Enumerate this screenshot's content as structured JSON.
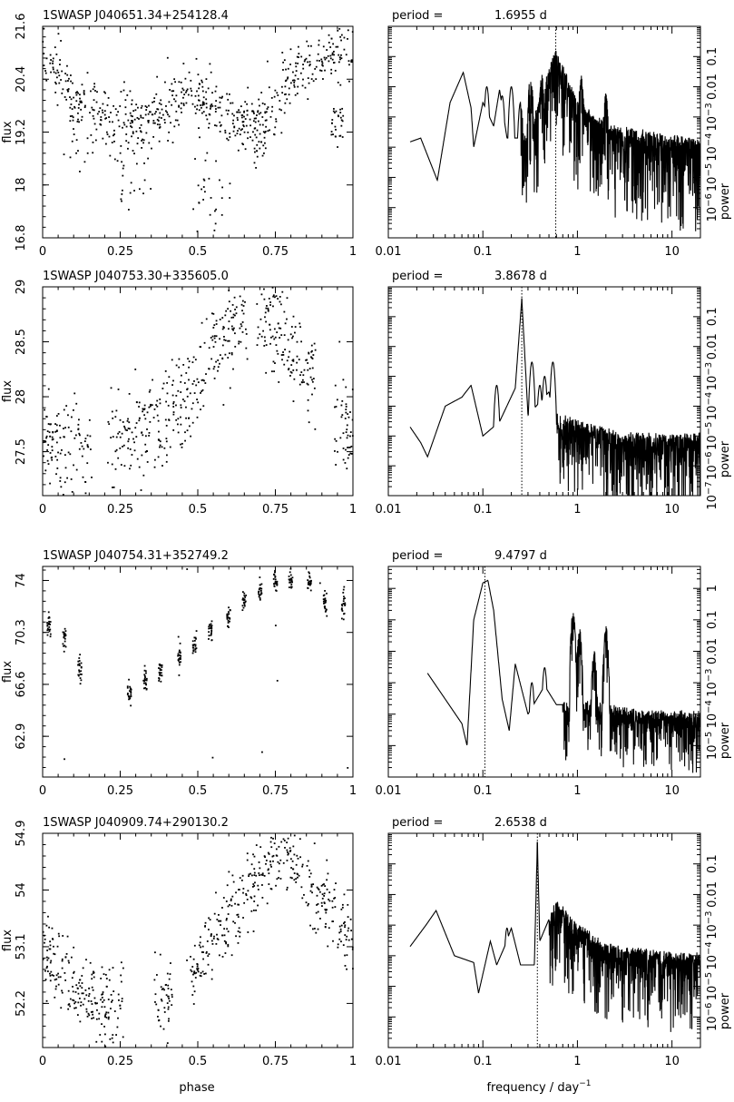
{
  "figure": {
    "xlabel_left": "phase",
    "xlabel_right_main": "frequency / day",
    "xlabel_right_sup": "−1"
  },
  "chart_data": [
    {
      "type": "scatter",
      "panel": 1,
      "title": "1SWASP J040651.34+254128.4",
      "xlabel": "phase",
      "ylabel": "flux",
      "xlim": [
        0,
        1
      ],
      "ylim": [
        16.8,
        21.6
      ],
      "xticks": [
        "0",
        "0.25",
        "0.5",
        "0.75",
        "1"
      ],
      "yticks": [
        "16.8",
        "18",
        "19.2",
        "20.4",
        "21.6"
      ],
      "ytick_values": [
        16.8,
        18,
        19.2,
        20.4,
        21.6
      ],
      "curve": [
        [
          0,
          20.9
        ],
        [
          0.05,
          20.5
        ],
        [
          0.1,
          19.9
        ],
        [
          0.2,
          19.55
        ],
        [
          0.3,
          19.35
        ],
        [
          0.4,
          19.7
        ],
        [
          0.48,
          20.1
        ],
        [
          0.55,
          19.7
        ],
        [
          0.62,
          19.4
        ],
        [
          0.68,
          19.35
        ],
        [
          0.75,
          20.0
        ],
        [
          0.85,
          20.6
        ],
        [
          0.95,
          21.0
        ],
        [
          1,
          21.0
        ]
      ],
      "scatter_sd": 0.35,
      "dips": [
        [
          0.06,
          0.17,
          20.3,
          18.3
        ],
        [
          0.25,
          0.35,
          19.2,
          17.6
        ],
        [
          0.48,
          0.61,
          18.7,
          16.9
        ],
        [
          0.67,
          0.72,
          19.8,
          18.6
        ],
        [
          0.93,
          0.97,
          19.8,
          18.9
        ]
      ]
    },
    {
      "type": "line",
      "panel": 1,
      "period_label": "period =",
      "period_value": "1.6955 d",
      "xscale": "log",
      "xlim": [
        0.01,
        20
      ],
      "yscale": "log",
      "ylim": [
        1e-07,
        1
      ],
      "xlabel": "frequency / day^-1",
      "ylabel": "power",
      "xticks": [
        "0.01",
        "0.1",
        "1",
        "10"
      ],
      "yticks": [
        "10^-6",
        "10^-5",
        "10^-4",
        "10^-3",
        "0.01",
        "0.1"
      ],
      "ytick_values": [
        1e-06,
        1e-05,
        0.0001,
        0.001,
        0.01,
        0.1
      ],
      "marked_frequency": 0.59,
      "envelope": [
        [
          0.017,
          0.00015
        ],
        [
          0.022,
          0.0002
        ],
        [
          0.033,
          8e-06
        ],
        [
          0.045,
          0.003
        ],
        [
          0.062,
          0.03
        ],
        [
          0.075,
          0.002
        ],
        [
          0.08,
          0.0001
        ],
        [
          0.1,
          0.003
        ],
        [
          0.13,
          0.0005
        ],
        [
          0.15,
          0.008
        ],
        [
          0.18,
          0.0002
        ],
        [
          0.3,
          0.0002
        ],
        [
          0.59,
          0.15
        ],
        [
          1.0,
          0.003
        ],
        [
          2,
          0.0005
        ],
        [
          5,
          0.0003
        ],
        [
          10,
          0.0002
        ],
        [
          20,
          0.00015
        ]
      ],
      "noise_start": 0.25,
      "noise_depth_dex": 3.0,
      "spikes": [
        [
          0.11,
          0.01
        ],
        [
          0.16,
          0.005
        ],
        [
          0.2,
          0.01
        ],
        [
          0.25,
          0.003
        ],
        [
          0.32,
          0.02
        ],
        [
          0.42,
          0.02
        ],
        [
          0.5,
          0.03
        ],
        [
          0.59,
          0.15
        ],
        [
          1.1,
          0.02
        ],
        [
          2.0,
          0.006
        ]
      ]
    },
    {
      "type": "scatter",
      "panel": 2,
      "title": "1SWASP J040753.30+335605.0",
      "xlabel": "phase",
      "ylabel": "flux",
      "xlim": [
        0,
        1
      ],
      "ylim": [
        27.1,
        29
      ],
      "xticks": [
        "0",
        "0.25",
        "0.5",
        "0.75",
        "1"
      ],
      "yticks": [
        "27.5",
        "28",
        "28.5",
        "29"
      ],
      "ytick_values": [
        27.5,
        28,
        28.5,
        29
      ],
      "curve": [
        [
          0,
          27.65
        ],
        [
          0.1,
          27.5
        ],
        [
          0.2,
          27.55
        ],
        [
          0.3,
          27.7
        ],
        [
          0.4,
          27.8
        ],
        [
          0.5,
          28.1
        ],
        [
          0.6,
          28.6
        ],
        [
          0.65,
          28.7
        ],
        [
          0.72,
          28.8
        ],
        [
          0.8,
          28.4
        ],
        [
          0.9,
          28.0
        ],
        [
          1,
          27.6
        ]
      ],
      "scatter_sd": 0.22,
      "gaps": [
        [
          0.16,
          0.21
        ],
        [
          0.66,
          0.69
        ],
        [
          0.88,
          0.94
        ]
      ],
      "dips": []
    },
    {
      "type": "line",
      "panel": 2,
      "period_label": "period =",
      "period_value": "3.8678 d",
      "xscale": "log",
      "xlim": [
        0.01,
        20
      ],
      "yscale": "log",
      "ylim": [
        1e-07,
        1
      ],
      "xlabel": "frequency / day^-1",
      "ylabel": "power",
      "xticks": [
        "0.01",
        "0.1",
        "1",
        "10"
      ],
      "yticks": [
        "10^-7",
        "10^-6",
        "10^-5",
        "10^-4",
        "10^-3",
        "0.01",
        "0.1"
      ],
      "ytick_values": [
        1e-07,
        1e-06,
        1e-05,
        0.0001,
        0.001,
        0.01,
        0.1
      ],
      "marked_frequency": 0.258,
      "envelope": [
        [
          0.017,
          2e-05
        ],
        [
          0.022,
          6e-06
        ],
        [
          0.026,
          2e-06
        ],
        [
          0.04,
          0.0001
        ],
        [
          0.06,
          0.0002
        ],
        [
          0.075,
          0.0005
        ],
        [
          0.1,
          1e-05
        ],
        [
          0.15,
          3e-05
        ],
        [
          0.22,
          0.0004
        ],
        [
          0.258,
          0.4
        ],
        [
          0.3,
          5e-05
        ],
        [
          0.5,
          0.0003
        ],
        [
          0.55,
          5e-05
        ],
        [
          1,
          3e-05
        ],
        [
          3,
          1e-05
        ],
        [
          10,
          1e-05
        ],
        [
          20,
          1e-05
        ]
      ],
      "noise_start": 0.6,
      "noise_depth_dex": 2.5,
      "spikes": [
        [
          0.14,
          0.0005
        ],
        [
          0.2,
          0.0001
        ],
        [
          0.33,
          0.003
        ],
        [
          0.4,
          0.0005
        ],
        [
          0.45,
          0.001
        ],
        [
          0.55,
          0.003
        ]
      ]
    },
    {
      "type": "scatter",
      "panel": 3,
      "title": "1SWASP J040754.31+352749.2",
      "xlabel": "phase",
      "ylabel": "flux",
      "xlim": [
        0,
        1
      ],
      "ylim": [
        60,
        75
      ],
      "xticks": [
        "0",
        "0.25",
        "0.5",
        "0.75",
        "1"
      ],
      "yticks": [
        "62.9",
        "66.6",
        "70.3",
        "74"
      ],
      "ytick_values": [
        62.9,
        66.6,
        70.3,
        74
      ],
      "clumps": [
        [
          0.02,
          70.8
        ],
        [
          0.07,
          70.0
        ],
        [
          0.12,
          67.8
        ],
        [
          0.28,
          66.0
        ],
        [
          0.33,
          66.8
        ],
        [
          0.38,
          67.6
        ],
        [
          0.44,
          68.5
        ],
        [
          0.49,
          69.5
        ],
        [
          0.54,
          70.4
        ],
        [
          0.6,
          71.4
        ],
        [
          0.65,
          72.5
        ],
        [
          0.7,
          73.2
        ],
        [
          0.75,
          73.8
        ],
        [
          0.8,
          74.0
        ],
        [
          0.86,
          74.0
        ],
        [
          0.91,
          72.5
        ],
        [
          0.97,
          72.2
        ]
      ]
    },
    {
      "type": "line",
      "panel": 3,
      "period_label": "period =",
      "period_value": "9.4797 d",
      "xscale": "log",
      "xlim": [
        0.01,
        20
      ],
      "yscale": "log",
      "ylim": [
        1e-06,
        5
      ],
      "xlabel": "frequency / day^-1",
      "ylabel": "power",
      "xticks": [
        "0.01",
        "0.1",
        "1",
        "10"
      ],
      "yticks": [
        "10^-5",
        "10^-4",
        "10^-3",
        "0.01",
        "0.1",
        "1"
      ],
      "ytick_values": [
        1e-05,
        0.0001,
        0.001,
        0.01,
        0.1,
        1
      ],
      "marked_frequency": 0.105,
      "envelope": [
        [
          0.026,
          0.002
        ],
        [
          0.04,
          0.0003
        ],
        [
          0.06,
          5e-05
        ],
        [
          0.068,
          1e-05
        ],
        [
          0.08,
          0.1
        ],
        [
          0.1,
          1.5
        ],
        [
          0.113,
          1.8
        ],
        [
          0.13,
          0.2
        ],
        [
          0.16,
          0.0003
        ],
        [
          0.19,
          3e-05
        ],
        [
          0.22,
          0.004
        ],
        [
          0.3,
          0.0001
        ],
        [
          0.45,
          0.0008
        ],
        [
          0.6,
          0.0002
        ],
        [
          0.85,
          0.0002
        ],
        [
          1.5,
          0.0002
        ],
        [
          5,
          0.0001
        ],
        [
          20,
          0.0001
        ]
      ],
      "noise_start": 0.7,
      "noise_depth_dex": 1.8,
      "spikes": [
        [
          0.33,
          0.001
        ],
        [
          0.45,
          0.003
        ],
        [
          0.9,
          0.2
        ],
        [
          1.05,
          0.05
        ],
        [
          1.5,
          0.01
        ],
        [
          2.0,
          0.05
        ]
      ]
    },
    {
      "type": "scatter",
      "panel": 4,
      "title": "1SWASP J040909.74+290130.2",
      "xlabel": "phase",
      "ylabel": "flux",
      "xlim": [
        0,
        1
      ],
      "ylim": [
        51.5,
        54.9
      ],
      "xticks": [
        "0",
        "0.25",
        "0.5",
        "0.75",
        "1"
      ],
      "yticks": [
        "52.2",
        "53.1",
        "54",
        "54.9"
      ],
      "ytick_values": [
        52.2,
        53.1,
        54,
        54.9
      ],
      "curve": [
        [
          0,
          53.0
        ],
        [
          0.1,
          52.5
        ],
        [
          0.2,
          52.2
        ],
        [
          0.3,
          52.3
        ],
        [
          0.4,
          52.3
        ],
        [
          0.5,
          52.8
        ],
        [
          0.6,
          53.6
        ],
        [
          0.7,
          54.3
        ],
        [
          0.76,
          54.6
        ],
        [
          0.82,
          54.4
        ],
        [
          0.88,
          54.0
        ],
        [
          0.95,
          53.5
        ],
        [
          1,
          53.1
        ]
      ],
      "scatter_sd": 0.3,
      "gaps": [
        [
          0.26,
          0.36
        ],
        [
          0.42,
          0.46
        ]
      ],
      "dips": []
    },
    {
      "type": "line",
      "panel": 4,
      "period_label": "period =",
      "period_value": "2.6538 d",
      "xscale": "log",
      "xlim": [
        0.01,
        20
      ],
      "yscale": "log",
      "ylim": [
        1e-07,
        1
      ],
      "xlabel": "frequency / day^-1",
      "ylabel": "power",
      "xticks": [
        "0.01",
        "0.1",
        "1",
        "10"
      ],
      "yticks": [
        "10^-6",
        "10^-5",
        "10^-4",
        "10^-3",
        "0.01",
        "0.1"
      ],
      "ytick_values": [
        1e-06,
        1e-05,
        0.0001,
        0.001,
        0.01,
        0.1
      ],
      "marked_frequency": 0.377,
      "envelope": [
        [
          0.017,
          0.0002
        ],
        [
          0.025,
          0.001
        ],
        [
          0.032,
          0.003
        ],
        [
          0.05,
          0.0001
        ],
        [
          0.08,
          6e-05
        ],
        [
          0.09,
          6e-06
        ],
        [
          0.12,
          0.0003
        ],
        [
          0.14,
          5e-05
        ],
        [
          0.17,
          0.0002
        ],
        [
          0.2,
          0.0008
        ],
        [
          0.25,
          5e-05
        ],
        [
          0.35,
          5e-05
        ],
        [
          0.377,
          0.5
        ],
        [
          0.4,
          0.0003
        ],
        [
          0.6,
          0.006
        ],
        [
          1,
          0.001
        ],
        [
          2,
          0.0002
        ],
        [
          10,
          0.0001
        ],
        [
          20,
          0.0001
        ]
      ],
      "noise_start": 0.5,
      "noise_depth_dex": 2.5,
      "spikes": [
        [
          0.18,
          0.0008
        ],
        [
          0.55,
          0.001
        ],
        [
          0.7,
          0.003
        ],
        [
          0.85,
          0.001
        ],
        [
          1.1,
          0.0004
        ]
      ]
    }
  ]
}
